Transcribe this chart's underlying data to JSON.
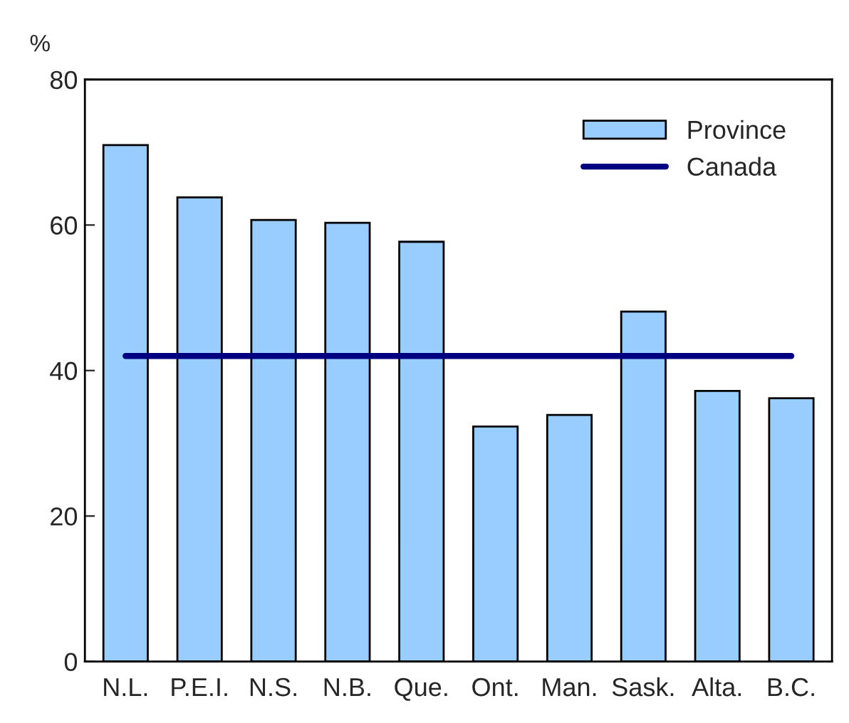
{
  "chart_data": {
    "type": "bar",
    "ylabel": "%",
    "categories": [
      "N.L.",
      "P.E.I.",
      "N.S.",
      "N.B.",
      "Que.",
      "Ont.",
      "Man.",
      "Sask.",
      "Alta.",
      "B.C."
    ],
    "series": [
      {
        "name": "Province",
        "color": "#99ccff",
        "values": [
          71.0,
          63.8,
          60.7,
          60.3,
          57.7,
          32.3,
          33.9,
          48.1,
          37.2,
          36.2
        ]
      },
      {
        "name": "Canada",
        "type": "line",
        "color": "#000080",
        "values": [
          42,
          42,
          42,
          42,
          42,
          42,
          42,
          42,
          42,
          42
        ]
      }
    ],
    "ylim": [
      0,
      80
    ],
    "yticks": [
      0,
      20,
      40,
      60,
      80
    ],
    "grid": false,
    "legend": "top right"
  }
}
